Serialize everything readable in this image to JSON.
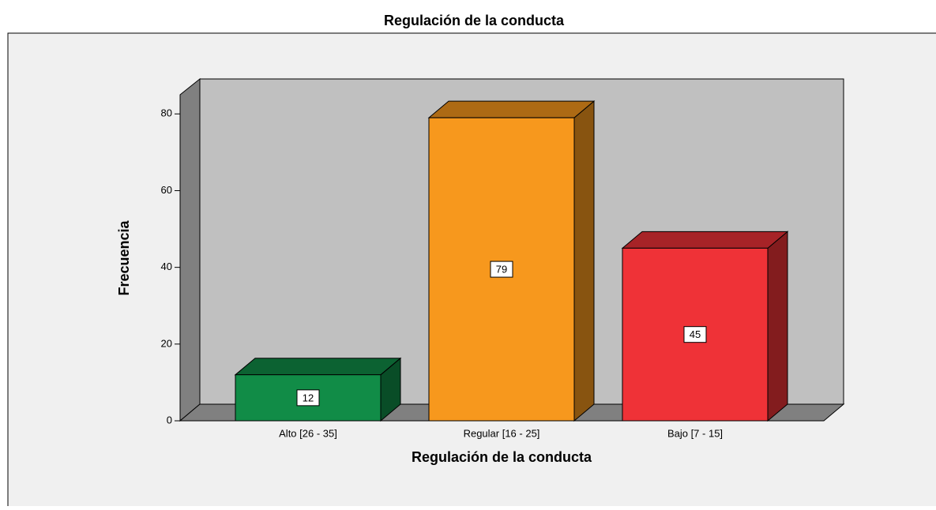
{
  "chart_data": {
    "type": "bar3d",
    "title": "Regulación de la conducta",
    "x_label": "Regulación de la conducta",
    "y_label": "Frecuencia",
    "categories": [
      "Alto [26 - 35]",
      "Regular [16 - 25]",
      "Bajo [7 - 15]"
    ],
    "values": [
      12,
      79,
      45
    ],
    "colors": [
      "#118c47",
      "#f7981d",
      "#ef3237"
    ],
    "ylim": [
      0,
      85
    ],
    "yticks": [
      0,
      20,
      40,
      60,
      80
    ]
  }
}
